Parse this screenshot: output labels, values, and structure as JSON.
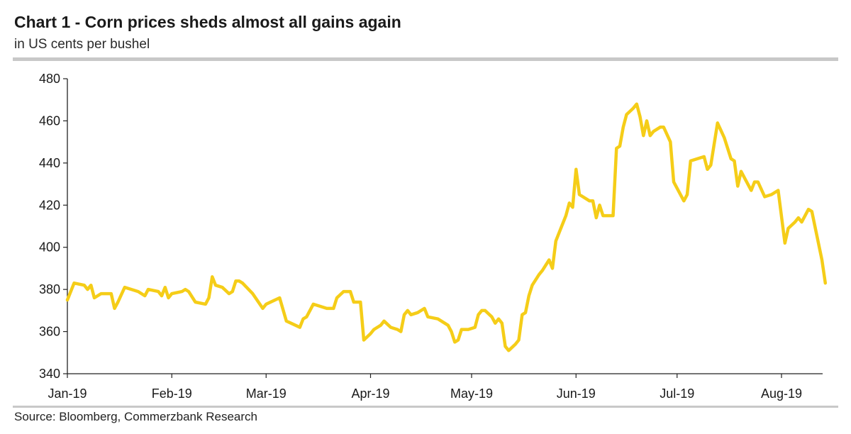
{
  "header": {
    "title": "Chart 1 - Corn prices sheds almost all gains again",
    "subtitle": "in US cents per bushel"
  },
  "footer": {
    "source": "Source: Bloomberg, Commerzbank Research"
  },
  "colors": {
    "series": "#F5CD18",
    "axis": "#222222",
    "rule": "#C8C8C8"
  },
  "chart_data": {
    "type": "line",
    "title": "Chart 1 - Corn prices sheds almost all gains again",
    "subtitle": "in US cents per bushel",
    "xlabel": "",
    "ylabel": "",
    "ylim": [
      340,
      480
    ],
    "yticks": [
      340,
      360,
      380,
      400,
      420,
      440,
      460,
      480
    ],
    "xlim": [
      "2019-01-01",
      "2019-08-20"
    ],
    "xticks": [
      {
        "date": "2019-01-01",
        "label": "Jan-19"
      },
      {
        "date": "2019-02-01",
        "label": "Feb-19"
      },
      {
        "date": "2019-03-01",
        "label": "Mar-19"
      },
      {
        "date": "2019-04-01",
        "label": "Apr-19"
      },
      {
        "date": "2019-05-01",
        "label": "May-19"
      },
      {
        "date": "2019-06-01",
        "label": "Jun-19"
      },
      {
        "date": "2019-07-01",
        "label": "Jul-19"
      },
      {
        "date": "2019-08-01",
        "label": "Aug-19"
      }
    ],
    "grid": false,
    "legend": "none",
    "series": [
      {
        "points": [
          [
            "2019-01-01",
            375
          ],
          [
            "2019-01-03",
            383
          ],
          [
            "2019-01-06",
            382
          ],
          [
            "2019-01-07",
            380
          ],
          [
            "2019-01-08",
            382
          ],
          [
            "2019-01-09",
            376
          ],
          [
            "2019-01-11",
            378
          ],
          [
            "2019-01-14",
            378
          ],
          [
            "2019-01-15",
            371
          ],
          [
            "2019-01-16",
            374
          ],
          [
            "2019-01-18",
            381
          ],
          [
            "2019-01-20",
            380
          ],
          [
            "2019-01-22",
            379
          ],
          [
            "2019-01-24",
            377
          ],
          [
            "2019-01-25",
            380
          ],
          [
            "2019-01-28",
            379
          ],
          [
            "2019-01-29",
            377
          ],
          [
            "2019-01-30",
            381
          ],
          [
            "2019-01-31",
            376
          ],
          [
            "2019-02-01",
            378
          ],
          [
            "2019-02-04",
            379
          ],
          [
            "2019-02-05",
            380
          ],
          [
            "2019-02-06",
            379
          ],
          [
            "2019-02-08",
            374
          ],
          [
            "2019-02-11",
            373
          ],
          [
            "2019-02-12",
            376
          ],
          [
            "2019-02-13",
            386
          ],
          [
            "2019-02-14",
            382
          ],
          [
            "2019-02-16",
            381
          ],
          [
            "2019-02-18",
            378
          ],
          [
            "2019-02-19",
            379
          ],
          [
            "2019-02-20",
            384
          ],
          [
            "2019-02-21",
            384
          ],
          [
            "2019-02-22",
            383
          ],
          [
            "2019-02-25",
            378
          ],
          [
            "2019-02-28",
            371
          ],
          [
            "2019-03-01",
            373
          ],
          [
            "2019-03-05",
            376
          ],
          [
            "2019-03-07",
            365
          ],
          [
            "2019-03-11",
            362
          ],
          [
            "2019-03-12",
            366
          ],
          [
            "2019-03-13",
            367
          ],
          [
            "2019-03-15",
            373
          ],
          [
            "2019-03-17",
            372
          ],
          [
            "2019-03-19",
            371
          ],
          [
            "2019-03-21",
            371
          ],
          [
            "2019-03-22",
            376
          ],
          [
            "2019-03-24",
            379
          ],
          [
            "2019-03-26",
            379
          ],
          [
            "2019-03-27",
            374
          ],
          [
            "2019-03-29",
            374
          ],
          [
            "2019-03-30",
            356
          ],
          [
            "2019-04-01",
            359
          ],
          [
            "2019-04-02",
            361
          ],
          [
            "2019-04-04",
            363
          ],
          [
            "2019-04-05",
            365
          ],
          [
            "2019-04-07",
            362
          ],
          [
            "2019-04-09",
            361
          ],
          [
            "2019-04-10",
            360
          ],
          [
            "2019-04-11",
            368
          ],
          [
            "2019-04-12",
            370
          ],
          [
            "2019-04-13",
            368
          ],
          [
            "2019-04-15",
            369
          ],
          [
            "2019-04-17",
            371
          ],
          [
            "2019-04-18",
            367
          ],
          [
            "2019-04-21",
            366
          ],
          [
            "2019-04-24",
            363
          ],
          [
            "2019-04-25",
            360
          ],
          [
            "2019-04-26",
            355
          ],
          [
            "2019-04-27",
            356
          ],
          [
            "2019-04-28",
            361
          ],
          [
            "2019-04-30",
            361
          ],
          [
            "2019-05-02",
            362
          ],
          [
            "2019-05-03",
            368
          ],
          [
            "2019-05-04",
            370
          ],
          [
            "2019-05-05",
            370
          ],
          [
            "2019-05-07",
            367
          ],
          [
            "2019-05-08",
            364
          ],
          [
            "2019-05-09",
            366
          ],
          [
            "2019-05-10",
            364
          ],
          [
            "2019-05-11",
            353
          ],
          [
            "2019-05-12",
            351
          ],
          [
            "2019-05-14",
            354
          ],
          [
            "2019-05-15",
            356
          ],
          [
            "2019-05-16",
            368
          ],
          [
            "2019-05-17",
            369
          ],
          [
            "2019-05-18",
            377
          ],
          [
            "2019-05-19",
            382
          ],
          [
            "2019-05-21",
            387
          ],
          [
            "2019-05-22",
            389
          ],
          [
            "2019-05-24",
            394
          ],
          [
            "2019-05-25",
            390
          ],
          [
            "2019-05-26",
            403
          ],
          [
            "2019-05-27",
            407
          ],
          [
            "2019-05-29",
            415
          ],
          [
            "2019-05-30",
            421
          ],
          [
            "2019-05-31",
            419
          ],
          [
            "2019-06-01",
            437
          ],
          [
            "2019-06-02",
            425
          ],
          [
            "2019-06-03",
            424
          ],
          [
            "2019-06-05",
            422
          ],
          [
            "2019-06-06",
            422
          ],
          [
            "2019-06-07",
            414
          ],
          [
            "2019-06-08",
            420
          ],
          [
            "2019-06-09",
            415
          ],
          [
            "2019-06-11",
            415
          ],
          [
            "2019-06-12",
            415
          ],
          [
            "2019-06-13",
            447
          ],
          [
            "2019-06-14",
            448
          ],
          [
            "2019-06-15",
            457
          ],
          [
            "2019-06-16",
            463
          ],
          [
            "2019-06-18",
            466
          ],
          [
            "2019-06-19",
            468
          ],
          [
            "2019-06-20",
            462
          ],
          [
            "2019-06-21",
            453
          ],
          [
            "2019-06-22",
            460
          ],
          [
            "2019-06-23",
            453
          ],
          [
            "2019-06-24",
            455
          ],
          [
            "2019-06-26",
            457
          ],
          [
            "2019-06-27",
            457
          ],
          [
            "2019-06-29",
            450
          ],
          [
            "2019-06-30",
            431
          ],
          [
            "2019-07-03",
            422
          ],
          [
            "2019-07-04",
            425
          ],
          [
            "2019-07-05",
            441
          ],
          [
            "2019-07-07",
            442
          ],
          [
            "2019-07-09",
            443
          ],
          [
            "2019-07-10",
            437
          ],
          [
            "2019-07-11",
            439
          ],
          [
            "2019-07-13",
            459
          ],
          [
            "2019-07-15",
            452
          ],
          [
            "2019-07-17",
            442
          ],
          [
            "2019-07-18",
            441
          ],
          [
            "2019-07-19",
            429
          ],
          [
            "2019-07-20",
            436
          ],
          [
            "2019-07-22",
            430
          ],
          [
            "2019-07-23",
            427
          ],
          [
            "2019-07-24",
            431
          ],
          [
            "2019-07-25",
            431
          ],
          [
            "2019-07-27",
            424
          ],
          [
            "2019-07-29",
            425
          ],
          [
            "2019-07-31",
            427
          ],
          [
            "2019-08-02",
            402
          ],
          [
            "2019-08-03",
            409
          ],
          [
            "2019-08-05",
            412
          ],
          [
            "2019-08-06",
            414
          ],
          [
            "2019-08-07",
            412
          ],
          [
            "2019-08-09",
            418
          ],
          [
            "2019-08-10",
            417
          ],
          [
            "2019-08-13",
            394
          ],
          [
            "2019-08-14",
            383
          ]
        ]
      }
    ]
  }
}
